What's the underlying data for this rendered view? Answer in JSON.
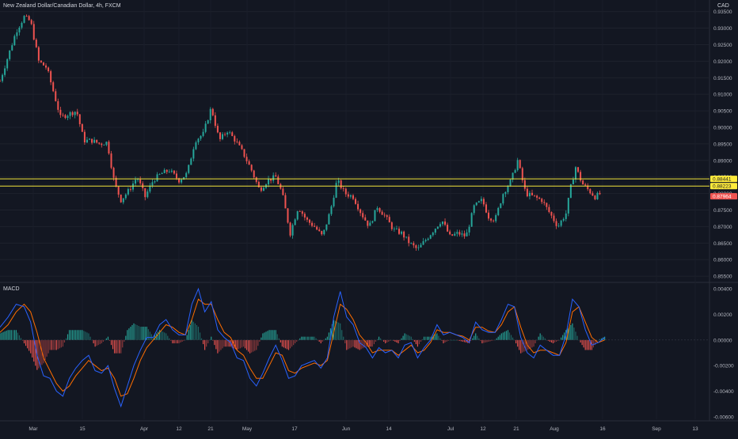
{
  "header": {
    "title": "New Zealand Dollar/Canadian Dollar, 4h, FXCM",
    "currency": "CAD"
  },
  "chart_data": [
    {
      "type": "candlestick",
      "title": "New Zealand Dollar/Canadian Dollar, 4h, FXCM",
      "ylim": [
        0.8536,
        0.9385
      ],
      "y_ticks": [
        "0.94000",
        "0.93500",
        "0.93000",
        "0.92500",
        "0.92000",
        "0.91500",
        "0.91000",
        "0.90500",
        "0.90000",
        "0.89500",
        "0.89000",
        "0.88500",
        "0.88000",
        "0.87500",
        "0.87000",
        "0.86500",
        "0.86000",
        "0.85500"
      ],
      "x_ticks": [
        "Mar",
        "15",
        "Apr",
        "12",
        "21",
        "May",
        "17",
        "Jun",
        "14",
        "Jul",
        "12",
        "21",
        "Aug",
        "16",
        "Sep",
        "13"
      ],
      "path": [
        [
          0,
          0.914
        ],
        [
          12,
          0.923
        ],
        [
          20,
          0.929
        ],
        [
          30,
          0.9334
        ],
        [
          38,
          0.932
        ],
        [
          48,
          0.92
        ],
        [
          58,
          0.918
        ],
        [
          66,
          0.911
        ],
        [
          75,
          0.903
        ],
        [
          85,
          0.904
        ],
        [
          95,
          0.905
        ],
        [
          104,
          0.896
        ],
        [
          114,
          0.896
        ],
        [
          124,
          0.895
        ],
        [
          133,
          0.8955
        ],
        [
          142,
          0.883
        ],
        [
          150,
          0.878
        ],
        [
          160,
          0.881
        ],
        [
          170,
          0.885
        ],
        [
          180,
          0.879
        ],
        [
          190,
          0.884
        ],
        [
          200,
          0.886
        ],
        [
          210,
          0.887
        ],
        [
          222,
          0.884
        ],
        [
          232,
          0.886
        ],
        [
          242,
          0.896
        ],
        [
          252,
          0.898
        ],
        [
          262,
          0.906
        ],
        [
          272,
          0.896
        ],
        [
          282,
          0.899
        ],
        [
          292,
          0.896
        ],
        [
          302,
          0.892
        ],
        [
          312,
          0.887
        ],
        [
          322,
          0.881
        ],
        [
          332,
          0.884
        ],
        [
          342,
          0.885
        ],
        [
          350,
          0.88
        ],
        [
          360,
          0.868
        ],
        [
          370,
          0.876
        ],
        [
          380,
          0.872
        ],
        [
          390,
          0.87
        ],
        [
          400,
          0.867
        ],
        [
          410,
          0.875
        ],
        [
          418,
          0.884
        ],
        [
          428,
          0.88
        ],
        [
          438,
          0.879
        ],
        [
          448,
          0.874
        ],
        [
          458,
          0.87
        ],
        [
          468,
          0.876
        ],
        [
          478,
          0.873
        ],
        [
          488,
          0.869
        ],
        [
          498,
          0.868
        ],
        [
          508,
          0.865
        ],
        [
          518,
          0.863
        ],
        [
          528,
          0.866
        ],
        [
          538,
          0.869
        ],
        [
          548,
          0.872
        ],
        [
          558,
          0.867
        ],
        [
          568,
          0.868
        ],
        [
          578,
          0.867
        ],
        [
          588,
          0.876
        ],
        [
          598,
          0.878
        ],
        [
          606,
          0.873
        ],
        [
          614,
          0.872
        ],
        [
          624,
          0.88
        ],
        [
          634,
          0.884
        ],
        [
          642,
          0.89
        ],
        [
          652,
          0.88
        ],
        [
          662,
          0.879
        ],
        [
          672,
          0.878
        ],
        [
          682,
          0.874
        ],
        [
          692,
          0.87
        ],
        [
          702,
          0.874
        ],
        [
          708,
          0.882
        ],
        [
          714,
          0.888
        ],
        [
          722,
          0.883
        ],
        [
          730,
          0.881
        ],
        [
          738,
          0.879
        ],
        [
          745,
          0.88
        ]
      ],
      "horizontal_levels": [
        {
          "value": "0.88441",
          "badge_color": "#ffeb3b",
          "line_color": "#f2e33a"
        },
        {
          "value": "0.88223",
          "badge_color": "#ffeb3b",
          "line_color": "#f2e33a"
        },
        {
          "value": "0.87964",
          "badge_color": "#ef5350",
          "line_color": ""
        }
      ],
      "up_color": "#26a69a",
      "down_color": "#ef5350"
    },
    {
      "type": "macd",
      "title": "MACD",
      "ylim": [
        -0.0062,
        0.0042
      ],
      "y_ticks": [
        "0.00400",
        "0.00200",
        "0.00000",
        "-0.00200",
        "-0.00400",
        "-0.00600"
      ],
      "macd_line": [
        [
          0,
          0.001
        ],
        [
          10,
          0.0018
        ],
        [
          20,
          0.0028
        ],
        [
          30,
          0.0026
        ],
        [
          38,
          0.0014
        ],
        [
          46,
          -0.0012
        ],
        [
          54,
          -0.0028
        ],
        [
          62,
          -0.003
        ],
        [
          70,
          -0.004
        ],
        [
          78,
          -0.0044
        ],
        [
          86,
          -0.003
        ],
        [
          94,
          -0.0022
        ],
        [
          102,
          -0.0016
        ],
        [
          110,
          -0.0012
        ],
        [
          118,
          -0.0024
        ],
        [
          126,
          -0.0026
        ],
        [
          134,
          -0.002
        ],
        [
          142,
          -0.0038
        ],
        [
          150,
          -0.0052
        ],
        [
          158,
          -0.0036
        ],
        [
          166,
          -0.002
        ],
        [
          174,
          -0.0008
        ],
        [
          182,
          0.0002
        ],
        [
          190,
          0.0002
        ],
        [
          198,
          0.0012
        ],
        [
          206,
          0.0016
        ],
        [
          214,
          0.0008
        ],
        [
          222,
          0.0004
        ],
        [
          230,
          0.0004
        ],
        [
          238,
          0.0028
        ],
        [
          246,
          0.004
        ],
        [
          254,
          0.0022
        ],
        [
          262,
          0.003
        ],
        [
          270,
          0.0008
        ],
        [
          278,
          0.0002
        ],
        [
          286,
          -0.0002
        ],
        [
          294,
          -0.0014
        ],
        [
          302,
          -0.0016
        ],
        [
          310,
          -0.003
        ],
        [
          318,
          -0.0036
        ],
        [
          326,
          -0.0026
        ],
        [
          334,
          -0.0014
        ],
        [
          342,
          -0.0004
        ],
        [
          350,
          -0.0016
        ],
        [
          358,
          -0.003
        ],
        [
          366,
          -0.0028
        ],
        [
          374,
          -0.002
        ],
        [
          382,
          -0.0018
        ],
        [
          390,
          -0.0016
        ],
        [
          398,
          -0.0022
        ],
        [
          406,
          -0.0014
        ],
        [
          414,
          0.0018
        ],
        [
          422,
          0.0038
        ],
        [
          430,
          0.0018
        ],
        [
          438,
          0.0012
        ],
        [
          446,
          -0.0002
        ],
        [
          454,
          -0.0006
        ],
        [
          462,
          -0.0014
        ],
        [
          470,
          -0.0006
        ],
        [
          478,
          -0.001
        ],
        [
          486,
          -0.0008
        ],
        [
          494,
          -0.0014
        ],
        [
          502,
          -0.0004
        ],
        [
          510,
          -0.0002
        ],
        [
          518,
          -0.0014
        ],
        [
          526,
          -0.0006
        ],
        [
          534,
          0.0
        ],
        [
          542,
          0.0012
        ],
        [
          550,
          0.0004
        ],
        [
          558,
          0.0006
        ],
        [
          566,
          0.0004
        ],
        [
          574,
          0.0002
        ],
        [
          582,
          -0.0002
        ],
        [
          590,
          0.0014
        ],
        [
          598,
          0.0008
        ],
        [
          606,
          0.0006
        ],
        [
          614,
          0.0006
        ],
        [
          622,
          0.0016
        ],
        [
          630,
          0.0028
        ],
        [
          638,
          0.0026
        ],
        [
          646,
          0.0002
        ],
        [
          654,
          -0.001
        ],
        [
          662,
          -0.0014
        ],
        [
          670,
          -0.0004
        ],
        [
          678,
          -0.0008
        ],
        [
          686,
          -0.0012
        ],
        [
          694,
          -0.0012
        ],
        [
          702,
          0.0004
        ],
        [
          710,
          0.0032
        ],
        [
          718,
          0.0026
        ],
        [
          726,
          0.0008
        ],
        [
          734,
          -0.0004
        ],
        [
          742,
          -0.0002
        ],
        [
          750,
          0.0002
        ]
      ],
      "signal_line": [
        [
          0,
          0.0006
        ],
        [
          10,
          0.0012
        ],
        [
          20,
          0.0022
        ],
        [
          30,
          0.0028
        ],
        [
          38,
          0.0022
        ],
        [
          46,
          0.0006
        ],
        [
          54,
          -0.0014
        ],
        [
          62,
          -0.0024
        ],
        [
          70,
          -0.0034
        ],
        [
          78,
          -0.004
        ],
        [
          86,
          -0.0036
        ],
        [
          94,
          -0.0028
        ],
        [
          102,
          -0.0022
        ],
        [
          110,
          -0.0016
        ],
        [
          118,
          -0.002
        ],
        [
          126,
          -0.0024
        ],
        [
          134,
          -0.0022
        ],
        [
          142,
          -0.003
        ],
        [
          150,
          -0.0044
        ],
        [
          158,
          -0.0042
        ],
        [
          166,
          -0.003
        ],
        [
          174,
          -0.0016
        ],
        [
          182,
          -0.0006
        ],
        [
          190,
          0.0
        ],
        [
          198,
          0.0006
        ],
        [
          206,
          0.0012
        ],
        [
          214,
          0.001
        ],
        [
          222,
          0.0006
        ],
        [
          230,
          0.0004
        ],
        [
          238,
          0.0016
        ],
        [
          246,
          0.0032
        ],
        [
          254,
          0.0028
        ],
        [
          262,
          0.0028
        ],
        [
          270,
          0.0016
        ],
        [
          278,
          0.0006
        ],
        [
          286,
          0.0002
        ],
        [
          294,
          -0.0008
        ],
        [
          302,
          -0.0012
        ],
        [
          310,
          -0.0022
        ],
        [
          318,
          -0.003
        ],
        [
          326,
          -0.003
        ],
        [
          334,
          -0.002
        ],
        [
          342,
          -0.001
        ],
        [
          350,
          -0.0012
        ],
        [
          358,
          -0.0024
        ],
        [
          366,
          -0.0026
        ],
        [
          374,
          -0.0022
        ],
        [
          382,
          -0.002
        ],
        [
          390,
          -0.0018
        ],
        [
          398,
          -0.002
        ],
        [
          406,
          -0.0016
        ],
        [
          414,
          0.0006
        ],
        [
          422,
          0.0028
        ],
        [
          430,
          0.0024
        ],
        [
          438,
          0.0016
        ],
        [
          446,
          0.0004
        ],
        [
          454,
          -0.0002
        ],
        [
          462,
          -0.001
        ],
        [
          470,
          -0.0008
        ],
        [
          478,
          -0.0008
        ],
        [
          486,
          -0.0008
        ],
        [
          494,
          -0.0012
        ],
        [
          502,
          -0.0008
        ],
        [
          510,
          -0.0004
        ],
        [
          518,
          -0.001
        ],
        [
          526,
          -0.0008
        ],
        [
          534,
          -0.0002
        ],
        [
          542,
          0.0008
        ],
        [
          550,
          0.0006
        ],
        [
          558,
          0.0006
        ],
        [
          566,
          0.0004
        ],
        [
          574,
          0.0003
        ],
        [
          582,
          0.0
        ],
        [
          590,
          0.001
        ],
        [
          598,
          0.001
        ],
        [
          606,
          0.0007
        ],
        [
          614,
          0.0006
        ],
        [
          622,
          0.0012
        ],
        [
          630,
          0.0022
        ],
        [
          638,
          0.0026
        ],
        [
          646,
          0.001
        ],
        [
          654,
          -0.0004
        ],
        [
          662,
          -0.001
        ],
        [
          670,
          -0.0008
        ],
        [
          678,
          -0.0008
        ],
        [
          686,
          -0.001
        ],
        [
          694,
          -0.0012
        ],
        [
          702,
          -0.0002
        ],
        [
          710,
          0.0022
        ],
        [
          718,
          0.0026
        ],
        [
          726,
          0.0014
        ],
        [
          734,
          0.0002
        ],
        [
          742,
          -0.0002
        ],
        [
          750,
          0.0
        ]
      ],
      "macd_color": "#2962ff",
      "signal_color": "#ff6d00",
      "hist_up_color": "#26a69a",
      "hist_down_color": "#ef5350"
    }
  ]
}
